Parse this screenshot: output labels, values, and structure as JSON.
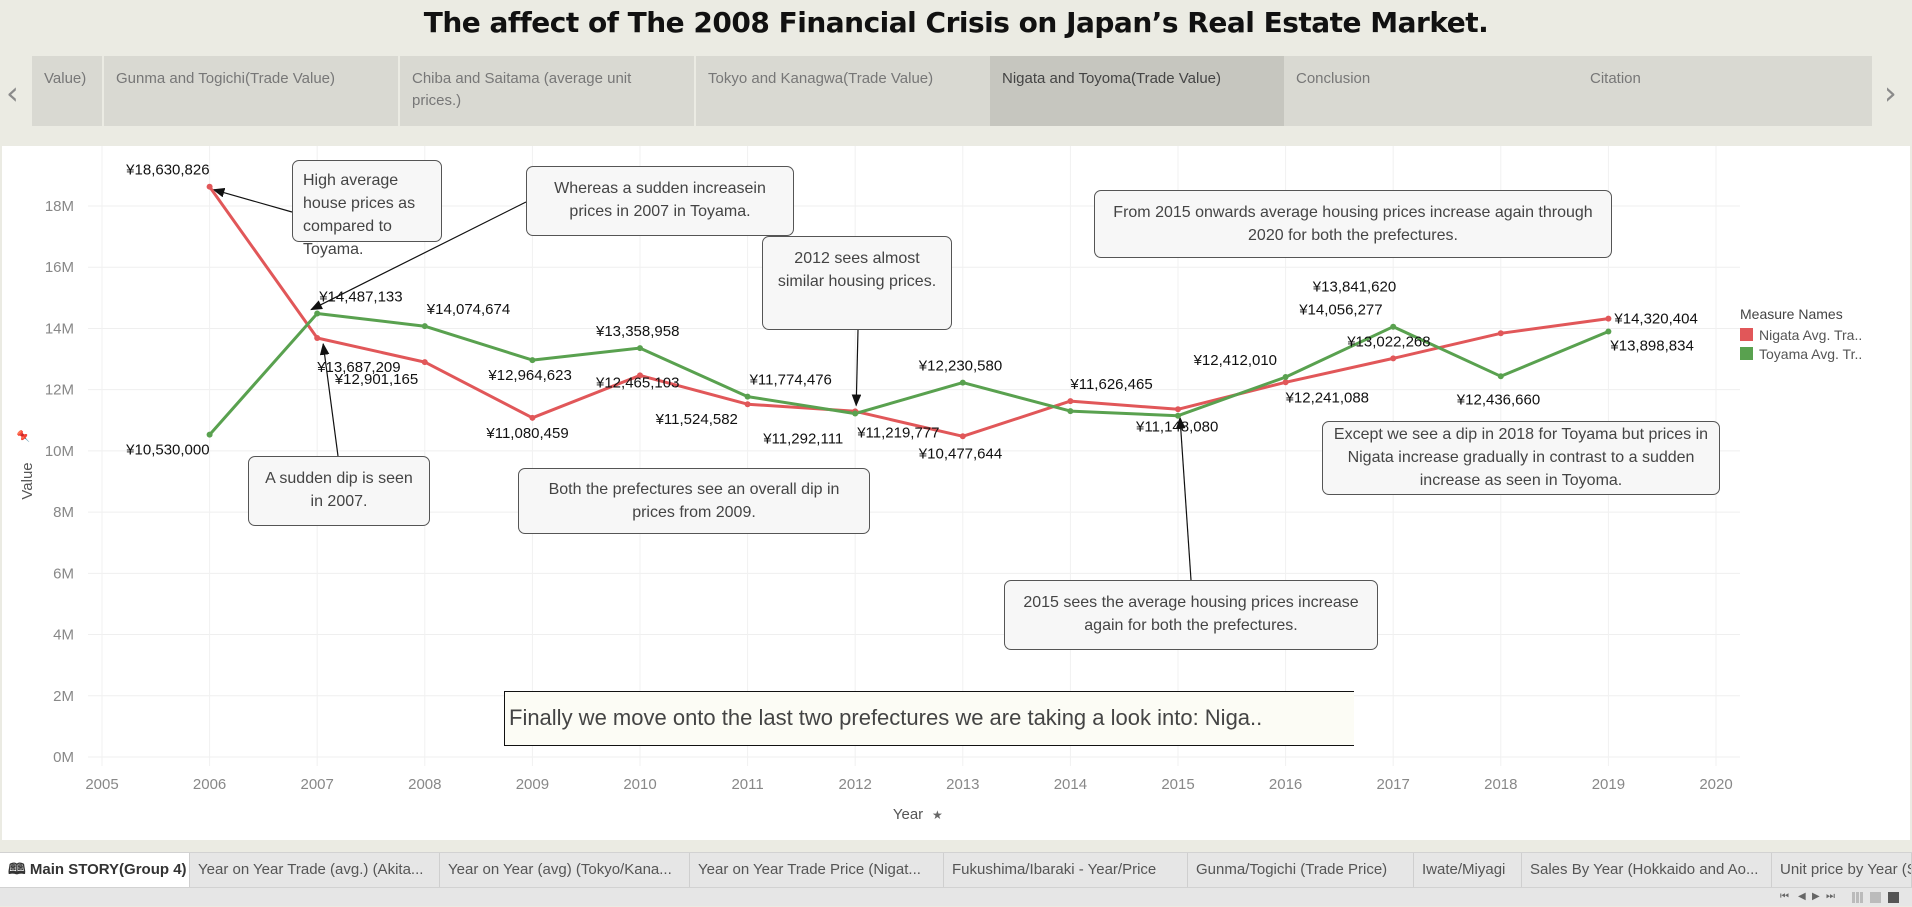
{
  "title": "The affect of The 2008 Financial Crisis on Japan’s Real Estate Market.",
  "story_nav": {
    "prev_icon": "chevron-left-icon",
    "next_icon": "chevron-right-icon",
    "points": [
      {
        "label": "Value)",
        "active": false
      },
      {
        "label": "Gunma and Togichi(Trade Value)",
        "active": false
      },
      {
        "label": "Chiba and Saitama (average unit prices.)",
        "active": false
      },
      {
        "label": "Tokyo and Kanagwa(Trade Value)",
        "active": false
      },
      {
        "label": "Nigata and Toyoma(Trade Value)",
        "active": true
      },
      {
        "label": "Conclusion",
        "active": false
      },
      {
        "label": "Citation",
        "active": false
      }
    ]
  },
  "legend": {
    "title": "Measure Names",
    "items": [
      {
        "label": "Nigata Avg. Tra..",
        "color": "#e15759"
      },
      {
        "label": "Toyama Avg. Tr..",
        "color": "#59a14f"
      }
    ]
  },
  "annotations": [
    {
      "id": "high-avg",
      "text": "High average house prices as compared to Toyama."
    },
    {
      "id": "increase-2007",
      "text": "Whereas a sudden increasein prices in 2007 in Toyama."
    },
    {
      "id": "similar-2012",
      "text": "2012 sees almost similar housing prices."
    },
    {
      "id": "from-2015",
      "text": "From 2015 onwards average housing prices increase again through 2020 for both the prefectures."
    },
    {
      "id": "dip-2007",
      "text": "A sudden dip is seen in 2007."
    },
    {
      "id": "dip-2009",
      "text": "Both the prefectures see an overall dip in prices from 2009."
    },
    {
      "id": "increase-2015",
      "text": "2015 sees the average housing prices increase again for both the prefectures."
    },
    {
      "id": "dip-2018",
      "text": "Except we see a dip in 2018 for Toyama but prices in Nigata increase gradually in contrast to a sudden increase as seen in Toyoma."
    }
  ],
  "caption": "Finally we move onto the last two prefectures we are taking a look into: Niga..",
  "chart_data": {
    "type": "line",
    "title": "",
    "xlabel": "Year",
    "ylabel": "Value",
    "x": [
      2006,
      2007,
      2008,
      2009,
      2010,
      2011,
      2012,
      2013,
      2014,
      2015,
      2016,
      2017,
      2018,
      2019
    ],
    "xlim": [
      2005,
      2020
    ],
    "ylim": [
      0,
      19000000
    ],
    "x_ticks": [
      "2005",
      "2006",
      "2007",
      "2008",
      "2009",
      "2010",
      "2011",
      "2012",
      "2013",
      "2014",
      "2015",
      "2016",
      "2017",
      "2018",
      "2019",
      "2020"
    ],
    "y_ticks": [
      "0M",
      "2M",
      "4M",
      "6M",
      "8M",
      "10M",
      "12M",
      "14M",
      "16M",
      "18M"
    ],
    "y_tick_values": [
      0,
      2000000,
      4000000,
      6000000,
      8000000,
      10000000,
      12000000,
      14000000,
      16000000,
      18000000
    ],
    "grid": true,
    "legend_position": "top-right",
    "series": [
      {
        "name": "Nigata Avg. Trade Value",
        "color": "#e15759",
        "values": [
          18630826,
          13687209,
          12901165,
          11080459,
          12465103,
          11524582,
          11292111,
          10477644,
          11626465,
          11360000,
          12241088,
          13022268,
          13841620,
          14320404
        ],
        "labels": [
          "¥18,630,826",
          "¥13,687,209",
          "¥12,901,165",
          "¥11,080,459",
          "¥12,465,103",
          "¥11,524,582",
          "¥11,292,111",
          "¥10,477,644",
          "¥11,626,465",
          "",
          "¥12,241,088",
          "¥13,022,268",
          "¥13,841,620",
          "¥14,320,404"
        ]
      },
      {
        "name": "Toyama Avg. Trade Value",
        "color": "#59a14f",
        "values": [
          10530000,
          14487133,
          14074674,
          12964623,
          13358958,
          11774476,
          11219777,
          12230580,
          11300000,
          11148080,
          12412010,
          14056277,
          12436660,
          13898834
        ],
        "labels": [
          "¥10,530,000",
          "¥14,487,133",
          "¥14,074,674",
          "¥12,964,623",
          "¥13,358,958",
          "¥11,774,476",
          "¥11,219,777",
          "¥12,230,580",
          "",
          "¥11,148,080",
          "¥12,412,010",
          "¥14,056,277",
          "¥12,436,660",
          "¥13,898,834"
        ]
      }
    ]
  },
  "sheet_tabs": [
    {
      "label": "🕮 Main STORY(Group 4)",
      "active": true
    },
    {
      "label": "Year on Year Trade (avg.) (Akita...",
      "active": false
    },
    {
      "label": "Year on Year (avg) (Tokyo/Kana...",
      "active": false
    },
    {
      "label": "Year on Year Trade Price (Nigat...",
      "active": false
    },
    {
      "label": "Fukushima/Ibaraki - Year/Price",
      "active": false
    },
    {
      "label": "Gunma/Togichi (Trade Price)",
      "active": false
    },
    {
      "label": "Iwate/Miyagi",
      "active": false
    },
    {
      "label": "Sales By Year (Hokkaido and Ao...",
      "active": false
    },
    {
      "label": "Unit price by Year (S",
      "active": false
    }
  ],
  "status_controls": {
    "first": "⏮",
    "prev": "◀",
    "next": "▶",
    "last": "⏭"
  }
}
